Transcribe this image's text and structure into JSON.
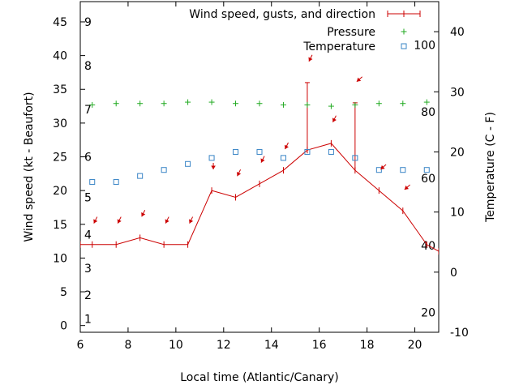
{
  "chart_data": {
    "type": "line",
    "xlabel": "Local time (Atlantic/Canary)",
    "ylabel": "Wind speed (kt - Beaufort)",
    "y2label": "Temperature (C - F)",
    "xlim": [
      6,
      21
    ],
    "ylim": [
      -1,
      48
    ],
    "y2lim": [
      -10,
      45
    ],
    "x_ticks": [
      6,
      8,
      10,
      12,
      14,
      16,
      18,
      20
    ],
    "y_ticks": [
      0,
      5,
      10,
      15,
      20,
      25,
      30,
      35,
      40,
      45
    ],
    "y2_ticks": [
      -10,
      0,
      10,
      20,
      30,
      40
    ],
    "beaufort_labels": [
      {
        "label": "1",
        "y": 1
      },
      {
        "label": "2",
        "y": 4.5
      },
      {
        "label": "3",
        "y": 8.5
      },
      {
        "label": "4",
        "y": 13.5
      },
      {
        "label": "5",
        "y": 19
      },
      {
        "label": "6",
        "y": 25
      },
      {
        "label": "7",
        "y": 32
      },
      {
        "label": "8",
        "y": 38.5
      },
      {
        "label": "9",
        "y": 45
      }
    ],
    "fahrenheit_labels": [
      {
        "label": "20",
        "c": -6.7
      },
      {
        "label": "40",
        "c": 4.4
      },
      {
        "label": "60",
        "c": 15.6
      },
      {
        "label": "80",
        "c": 26.7
      },
      {
        "label": "100",
        "c": 37.8
      }
    ],
    "legend": [
      "Wind speed, gusts, and direction",
      "Pressure",
      "Temperature"
    ],
    "series": [
      {
        "name": "Wind speed, gusts, and direction",
        "color": "#cc0000",
        "x": [
          6,
          6.5,
          7.5,
          8.5,
          9.5,
          10.5,
          11.5,
          12.5,
          13.5,
          14.5,
          15.5,
          16.5,
          17.5,
          18.5,
          19.5,
          20.5,
          21
        ],
        "y": [
          12,
          12,
          12,
          13,
          12,
          12,
          20,
          19,
          21,
          23,
          26,
          27,
          23,
          20,
          17,
          12,
          11
        ],
        "gusts": [
          {
            "x": 15.5,
            "y": 36
          },
          {
            "x": 17.5,
            "y": 33
          }
        ]
      },
      {
        "name": "Pressure",
        "color": "#22aa22",
        "x": [
          6.5,
          7.5,
          8.5,
          9.5,
          10.5,
          11.5,
          12.5,
          13.5,
          14.5,
          15.5,
          16.5,
          17.5,
          18.5,
          19.5,
          20.5
        ],
        "y": [
          32.7,
          32.9,
          32.9,
          32.9,
          33.1,
          33.1,
          32.9,
          32.9,
          32.7,
          32.7,
          32.5,
          32.7,
          32.9,
          32.9,
          33.1
        ]
      },
      {
        "name": "Temperature",
        "color": "#3a85c6",
        "x": [
          6.5,
          7.5,
          8.5,
          9.5,
          10.5,
          11.5,
          12.5,
          13.5,
          14.5,
          15.5,
          16.5,
          17.5,
          18.5,
          19.5,
          20.5
        ],
        "y": [
          15,
          15,
          16,
          17,
          18,
          19,
          20,
          20,
          19,
          20,
          20,
          19,
          17,
          17,
          17
        ]
      }
    ],
    "wind_direction": {
      "color": "#cc0000",
      "arrows": [
        {
          "x": 6.5,
          "y": 15.5,
          "dir": 1
        },
        {
          "x": 7.5,
          "y": 15.5,
          "dir": 1
        },
        {
          "x": 8.5,
          "y": 16.5,
          "dir": 1
        },
        {
          "x": 9.5,
          "y": 15.5,
          "dir": 1
        },
        {
          "x": 10.5,
          "y": 15.5,
          "dir": 1
        },
        {
          "x": 11.5,
          "y": 23.5,
          "dir": 0
        },
        {
          "x": 12.5,
          "y": 22.5,
          "dir": 1
        },
        {
          "x": 13.5,
          "y": 24.5,
          "dir": 1
        },
        {
          "x": 14.5,
          "y": 26.5,
          "dir": 1
        },
        {
          "x": 15.5,
          "y": 39.5,
          "dir": 1
        },
        {
          "x": 16.5,
          "y": 30.5,
          "dir": 1
        },
        {
          "x": 17.5,
          "y": 36.5,
          "dir": 2
        },
        {
          "x": 18.5,
          "y": 23.5,
          "dir": 2
        },
        {
          "x": 19.5,
          "y": 20.5,
          "dir": 2
        }
      ]
    }
  }
}
